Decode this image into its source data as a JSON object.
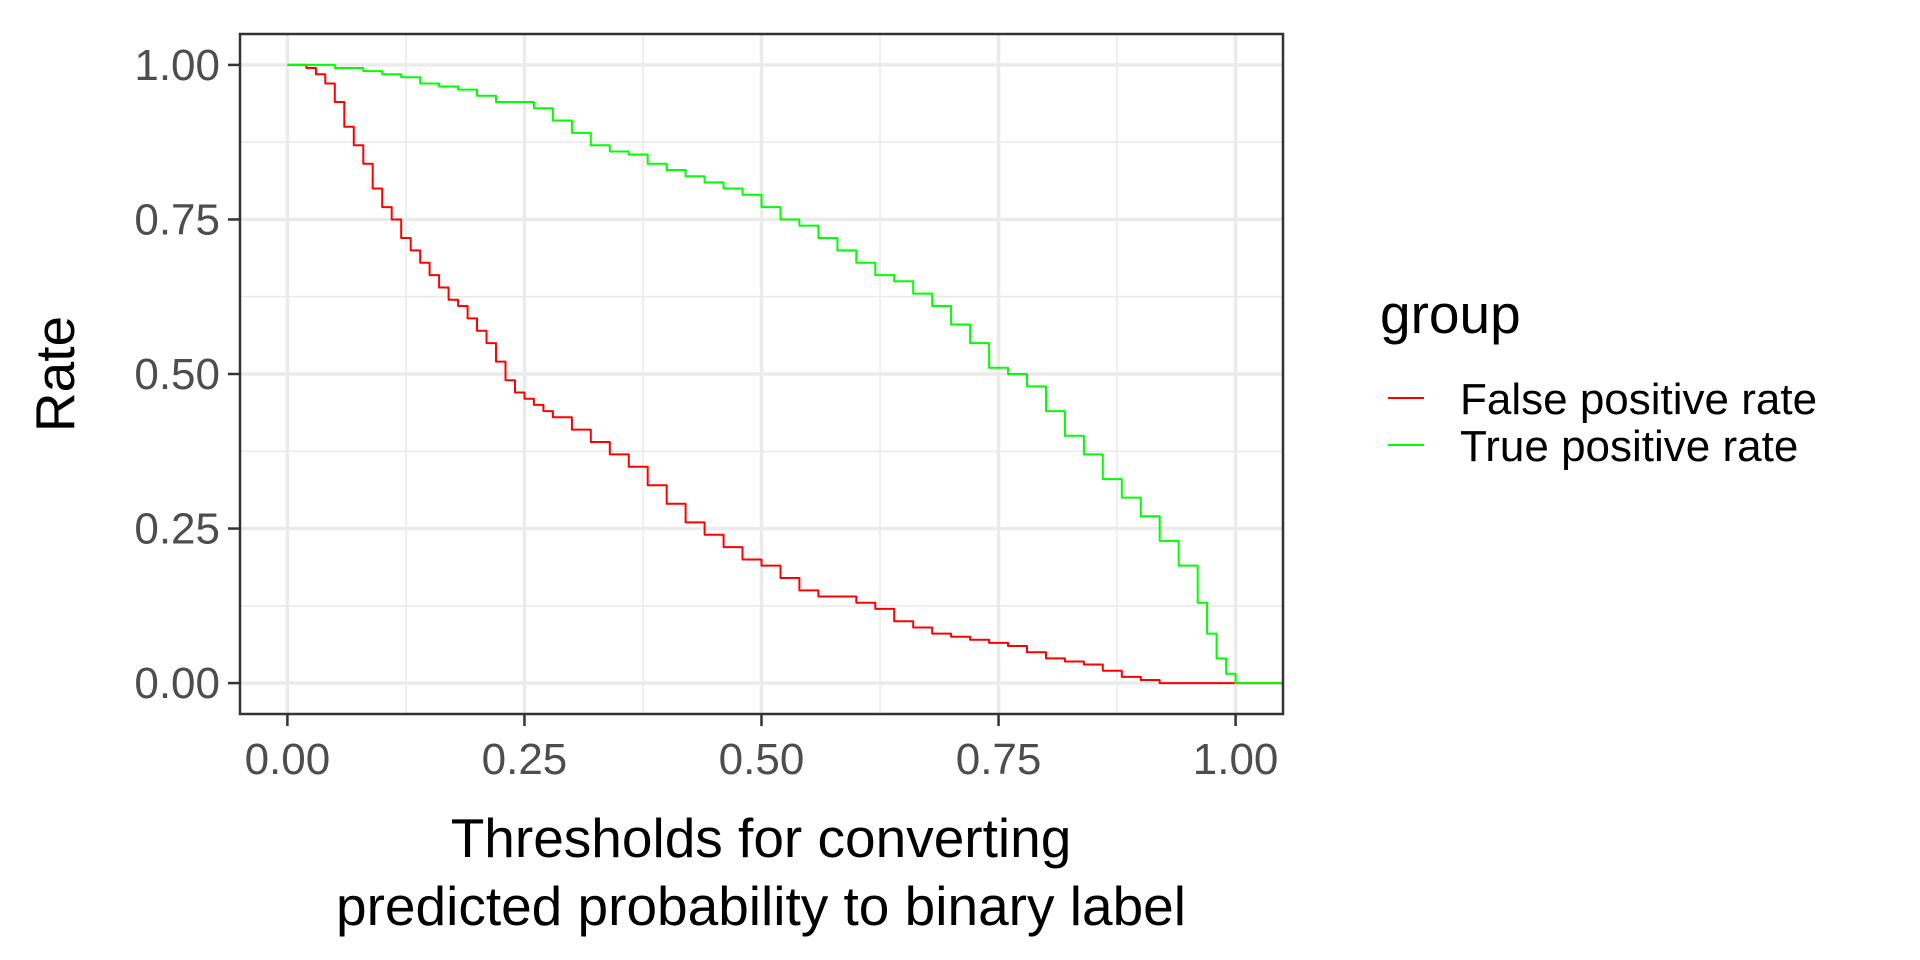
{
  "chart_data": {
    "type": "line",
    "title": "",
    "xlabel_lines": [
      "Thresholds for converting",
      "predicted probability to binary label"
    ],
    "ylabel": "Rate",
    "xlim": [
      -0.05,
      1.05
    ],
    "ylim": [
      -0.05,
      1.05
    ],
    "x_ticks": [
      0,
      0.25,
      0.5,
      0.75,
      1
    ],
    "x_tick_labels": [
      "0.00",
      "0.25",
      "0.50",
      "0.75",
      "1.00"
    ],
    "y_ticks": [
      0,
      0.25,
      0.5,
      0.75,
      1
    ],
    "y_tick_labels": [
      "0.00",
      "0.25",
      "0.50",
      "0.75",
      "1.00"
    ],
    "grid": true,
    "legend": {
      "title": "group",
      "position": "right"
    },
    "series": [
      {
        "name": "False positive rate",
        "color": "#ff0000",
        "x": [
          0,
          0.02,
          0.03,
          0.04,
          0.05,
          0.06,
          0.07,
          0.08,
          0.09,
          0.1,
          0.11,
          0.12,
          0.13,
          0.14,
          0.15,
          0.16,
          0.17,
          0.18,
          0.19,
          0.2,
          0.21,
          0.22,
          0.23,
          0.24,
          0.25,
          0.26,
          0.27,
          0.28,
          0.3,
          0.32,
          0.34,
          0.36,
          0.38,
          0.4,
          0.42,
          0.44,
          0.46,
          0.48,
          0.5,
          0.52,
          0.54,
          0.56,
          0.58,
          0.6,
          0.62,
          0.64,
          0.66,
          0.68,
          0.7,
          0.72,
          0.74,
          0.76,
          0.78,
          0.8,
          0.82,
          0.84,
          0.86,
          0.88,
          0.9,
          0.92,
          0.95,
          1.0,
          1.05
        ],
        "y": [
          1.0,
          0.995,
          0.985,
          0.97,
          0.94,
          0.9,
          0.87,
          0.84,
          0.8,
          0.77,
          0.75,
          0.72,
          0.7,
          0.68,
          0.66,
          0.64,
          0.62,
          0.61,
          0.59,
          0.57,
          0.55,
          0.52,
          0.49,
          0.47,
          0.46,
          0.45,
          0.44,
          0.43,
          0.41,
          0.39,
          0.37,
          0.35,
          0.32,
          0.29,
          0.26,
          0.24,
          0.22,
          0.2,
          0.19,
          0.17,
          0.15,
          0.14,
          0.14,
          0.13,
          0.12,
          0.1,
          0.09,
          0.08,
          0.075,
          0.07,
          0.065,
          0.06,
          0.05,
          0.04,
          0.035,
          0.03,
          0.02,
          0.01,
          0.005,
          0.0,
          0.0,
          0.0,
          0.0
        ]
      },
      {
        "name": "True positive rate",
        "color": "#00ff00",
        "x": [
          0,
          0.05,
          0.08,
          0.1,
          0.12,
          0.14,
          0.16,
          0.18,
          0.2,
          0.22,
          0.24,
          0.26,
          0.28,
          0.3,
          0.32,
          0.34,
          0.36,
          0.38,
          0.4,
          0.42,
          0.44,
          0.46,
          0.48,
          0.5,
          0.52,
          0.54,
          0.56,
          0.58,
          0.6,
          0.62,
          0.64,
          0.66,
          0.68,
          0.7,
          0.72,
          0.74,
          0.76,
          0.78,
          0.8,
          0.82,
          0.84,
          0.86,
          0.88,
          0.9,
          0.92,
          0.94,
          0.96,
          0.97,
          0.98,
          0.99,
          1.0,
          1.05
        ],
        "y": [
          1.0,
          0.995,
          0.99,
          0.985,
          0.98,
          0.97,
          0.965,
          0.96,
          0.95,
          0.94,
          0.94,
          0.93,
          0.91,
          0.89,
          0.87,
          0.86,
          0.855,
          0.84,
          0.83,
          0.82,
          0.81,
          0.8,
          0.79,
          0.77,
          0.75,
          0.74,
          0.72,
          0.7,
          0.68,
          0.66,
          0.65,
          0.63,
          0.61,
          0.58,
          0.55,
          0.51,
          0.5,
          0.48,
          0.44,
          0.4,
          0.37,
          0.33,
          0.3,
          0.27,
          0.23,
          0.19,
          0.13,
          0.08,
          0.04,
          0.015,
          0.0,
          0.0
        ]
      }
    ]
  }
}
